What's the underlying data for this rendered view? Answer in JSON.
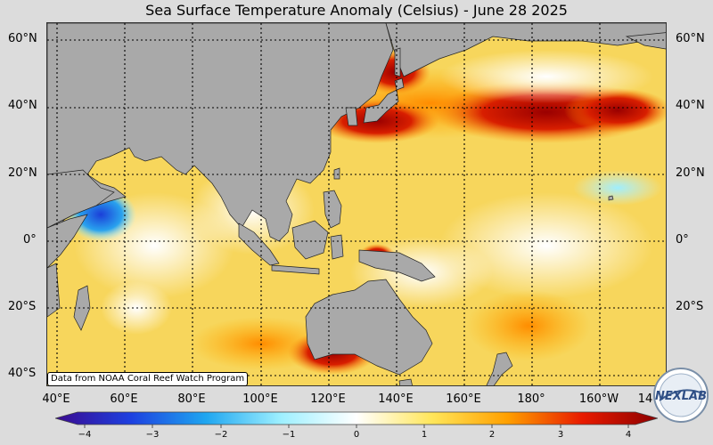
{
  "title": "Sea Surface Temperature Anomaly (Celsius) - June 28 2025",
  "credit": "Data from NOAA Coral Reef Watch Program",
  "latitude_labels": [
    "60°N",
    "40°N",
    "20°N",
    "0°",
    "20°S",
    "40°S"
  ],
  "longitude_labels": [
    "40°E",
    "60°E",
    "80°E",
    "100°E",
    "120°E",
    "140°E",
    "160°E",
    "180°",
    "160°W",
    "14"
  ],
  "colorbar": {
    "ticks": [
      "−4",
      "−3",
      "−2",
      "−1",
      "0",
      "1",
      "2",
      "3",
      "4"
    ],
    "min": -4,
    "max": 4,
    "stops": [
      {
        "value": -4,
        "color": "#3b0a8f"
      },
      {
        "value": -3,
        "color": "#1d40e0"
      },
      {
        "value": -2,
        "color": "#1fa6f0"
      },
      {
        "value": -1,
        "color": "#9ef0ff"
      },
      {
        "value": 0,
        "color": "#ffffff"
      },
      {
        "value": 1,
        "color": "#ffe65a"
      },
      {
        "value": 2,
        "color": "#ffa000"
      },
      {
        "value": 3,
        "color": "#e81a00"
      },
      {
        "value": 4,
        "color": "#8c0000"
      }
    ]
  },
  "colors": {
    "land": "#a9a9a9",
    "ocean_mean": "#f6d35a",
    "gridline": "#000000",
    "background": "#dcdcdc"
  },
  "logo_text": "NEXLAB",
  "map_extent": {
    "lon_min": 35,
    "lon_max": 217,
    "lat_min": -43,
    "lat_max": 65
  }
}
